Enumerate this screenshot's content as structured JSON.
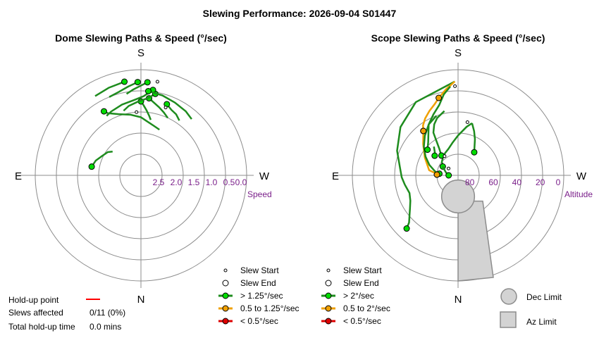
{
  "title": "Slewing Performance: 2026-09-04 S01447",
  "footer": {
    "holdup_label": "Hold-up point",
    "slews_label": "Slews affected",
    "slews_value": "0/11 (0%)",
    "total_label": "Total hold-up time",
    "total_value": "0.0 mins",
    "holdup_color": "#ff0000"
  },
  "colors": {
    "fast": "#00dd00",
    "fast_line": "#1e8c1e",
    "medium": "#f0a000",
    "slow": "#dd0000",
    "ring": "#8c8c8c",
    "ring_label": "#7a1f8a",
    "limit_fill": "#d3d3d3",
    "limit_edge": "#8c8c8c"
  },
  "chart_data": [
    {
      "type": "polar",
      "title": "Dome Slewing Paths & Speed (°/sec)",
      "directions": {
        "top": "S",
        "bottom": "N",
        "left": "E",
        "right": "W"
      },
      "radial_label": "Speed",
      "radial_ticks": [
        "2.5",
        "2.0",
        "1.5",
        "1.0",
        "0.5",
        "0.0"
      ],
      "radial_values": [
        2.5,
        2.0,
        1.5,
        1.0,
        0.5,
        0.0
      ],
      "radial_range": [
        3.0,
        0.0
      ],
      "legend": {
        "start": "Slew Start",
        "end": "Slew End",
        "fast": "> 1.25°/sec",
        "medium": "0.5 to 1.25°/sec",
        "slow": "< 0.5°/sec"
      },
      "paths": [
        {
          "color": "fast",
          "points": [
            [
              202,
              1.6
            ],
            [
              195,
              1.55
            ],
            [
              186,
              1.45
            ],
            [
              180,
              1.35
            ],
            [
              170,
              1.25
            ],
            [
              160,
              1.15
            ],
            [
              152,
              1.0
            ],
            [
              150,
              0.9
            ]
          ]
        },
        {
          "color": "fast",
          "points": [
            [
              190,
              1.4
            ],
            [
              188,
              1.3
            ],
            [
              185,
              1.15
            ],
            [
              182,
              1.0
            ],
            [
              180,
              0.9
            ]
          ]
        },
        {
          "color": "fast",
          "points": [
            [
              205,
              1.2
            ],
            [
              200,
              1.1
            ],
            [
              195,
              1.0
            ],
            [
              190,
              0.9
            ],
            [
              186,
              0.8
            ]
          ]
        },
        {
          "color": "fast",
          "points": [
            [
              215,
              1.1
            ],
            [
              210,
              1.0
            ],
            [
              205,
              0.95
            ],
            [
              200,
              0.85
            ]
          ]
        },
        {
          "color": "fast",
          "points": [
            [
              165,
              1.1
            ],
            [
              170,
              1.0
            ],
            [
              178,
              0.9
            ],
            [
              185,
              0.8
            ],
            [
              190,
              0.65
            ]
          ]
        },
        {
          "color": "fast",
          "points": [
            [
              150,
              1.05
            ],
            [
              155,
              1.0
            ],
            [
              165,
              0.92
            ],
            [
              175,
              0.85
            ],
            [
              182,
              0.75
            ],
            [
              188,
              0.55
            ]
          ]
        },
        {
          "color": "fast",
          "points": [
            [
              222,
              0.85
            ],
            [
              215,
              0.78
            ],
            [
              205,
              0.72
            ],
            [
              195,
              0.65
            ],
            [
              185,
              0.6
            ]
          ]
        },
        {
          "color": "fast",
          "points": [
            [
              170,
              0.65
            ],
            [
              175,
              0.55
            ],
            [
              180,
              0.45
            ],
            [
              184,
              0.35
            ]
          ]
        },
        {
          "color": "fast",
          "points": [
            [
              158,
              0.6
            ],
            [
              165,
              0.55
            ],
            [
              172,
              0.45
            ],
            [
              178,
              0.35
            ]
          ]
        },
        {
          "color": "fast",
          "points": [
            [
              130,
              1.95
            ],
            [
              125,
              1.85
            ],
            [
              115,
              1.75
            ],
            [
              108,
              1.65
            ],
            [
              100,
              1.58
            ]
          ]
        },
        {
          "color": "fast",
          "points": [
            [
              150,
              0.4
            ],
            [
              160,
              0.35
            ],
            [
              170,
              0.3
            ]
          ]
        }
      ],
      "start_markers": [
        [
          200,
          0.95
        ],
        [
          176,
          1.2
        ],
        [
          190,
          0.3
        ]
      ],
      "end_markers": [
        [
          202,
          1.6
        ],
        [
          190,
          1.4
        ],
        [
          130,
          1.95
        ],
        [
          210,
          1.1
        ],
        [
          160,
          1.15
        ],
        [
          188,
          0.55
        ],
        [
          150,
          0.6
        ],
        [
          170,
          0.45
        ],
        [
          215,
          0.8
        ],
        [
          155,
          0.4
        ]
      ]
    },
    {
      "type": "polar",
      "title": "Scope Slewing Paths & Speed (°/sec)",
      "directions": {
        "top": "S",
        "bottom": "N",
        "left": "E",
        "right": "W"
      },
      "radial_label": "Altitude",
      "radial_ticks": [
        "80",
        "60",
        "40",
        "20",
        "0"
      ],
      "radial_values": [
        80,
        60,
        40,
        20,
        0
      ],
      "radial_range": [
        90,
        0
      ],
      "legend": {
        "start": "Slew Start",
        "end": "Slew End",
        "fast": "> 2°/sec",
        "medium": "0.5 to 2°/sec",
        "slow": "< 0.5°/sec",
        "dec_limit": "Dec Limit",
        "az_limit": "Az Limit"
      },
      "paths": [
        {
          "color": "fast",
          "points": [
            [
              178,
              10
            ],
            [
              150,
              18
            ],
            [
              130,
              26
            ],
            [
              112,
              34
            ],
            [
              98,
              40
            ],
            [
              88,
              42
            ],
            [
              80,
              44
            ],
            [
              70,
              46
            ],
            [
              62,
              44
            ],
            [
              55,
              40
            ],
            [
              50,
              36
            ],
            [
              46,
              32
            ],
            [
              44,
              27
            ]
          ]
        },
        {
          "color": "medium",
          "points": [
            [
              178,
              10
            ],
            [
              172,
              16
            ],
            [
              166,
              22
            ],
            [
              162,
              26
            ],
            [
              156,
              30
            ],
            [
              150,
              34
            ],
            [
              145,
              38
            ],
            [
              142,
              42
            ]
          ]
        },
        {
          "color": "medium",
          "points": [
            [
              142,
              42
            ],
            [
              132,
              50
            ],
            [
              118,
              58
            ],
            [
              100,
              65
            ],
            [
              96,
              70
            ],
            [
              92,
              72
            ]
          ]
        },
        {
          "color": "fast",
          "points": [
            [
              160,
              36
            ],
            [
              150,
              40
            ],
            [
              140,
              46
            ],
            [
              130,
              52
            ],
            [
              120,
              58
            ],
            [
              110,
              64
            ],
            [
              100,
              70
            ],
            [
              95,
              74
            ]
          ]
        },
        {
          "color": "fast",
          "points": [
            [
              175,
              14
            ],
            [
              170,
              20
            ],
            [
              165,
              28
            ],
            [
              158,
              34
            ],
            [
              150,
              40
            ],
            [
              145,
              46
            ],
            [
              138,
              52
            ],
            [
              130,
              56
            ]
          ]
        },
        {
          "color": "fast",
          "points": [
            [
              195,
              44
            ],
            [
              200,
              50
            ],
            [
              205,
              56
            ],
            [
              210,
              62
            ],
            [
              215,
              66
            ]
          ]
        },
        {
          "color": "fast",
          "points": [
            [
              195,
              44
            ],
            [
              190,
              48
            ],
            [
              180,
              56
            ],
            [
              170,
              62
            ],
            [
              160,
              66
            ],
            [
              150,
              68
            ],
            [
              140,
              70
            ],
            [
              130,
              72
            ],
            [
              120,
              75
            ]
          ]
        },
        {
          "color": "fast",
          "points": [
            [
              120,
              75
            ],
            [
              110,
              78
            ],
            [
              100,
              80
            ],
            [
              90,
              82
            ]
          ]
        },
        {
          "color": "fast",
          "points": [
            [
              168,
              34
            ],
            [
              160,
              38
            ],
            [
              155,
              42
            ],
            [
              150,
              48
            ],
            [
              148,
              55
            ],
            [
              145,
              62
            ],
            [
              140,
              68
            ]
          ]
        },
        {
          "color": "fast",
          "points": [
            [
              140,
              58
            ],
            [
              135,
              62
            ],
            [
              130,
              64
            ]
          ]
        }
      ],
      "start_markers": [
        [
          190,
          44
        ],
        [
          178,
          14
        ],
        [
          92,
          72
        ],
        [
          126,
          80
        ],
        [
          145,
          70
        ]
      ],
      "end_markers": [
        [
          178,
          10
        ],
        [
          162,
          24
        ],
        [
          44,
          27
        ],
        [
          142,
          58
        ],
        [
          150,
          64
        ],
        [
          195,
          44
        ],
        [
          95,
          74
        ],
        [
          140,
          68
        ],
        [
          120,
          75
        ]
      ],
      "medium_end_markers": [
        [
          166,
          22
        ],
        [
          142,
          42
        ],
        [
          92,
          72
        ]
      ],
      "dec_limit": {
        "center_az": 0,
        "center_alt": 72,
        "radius_deg": 14
      },
      "az_limit": {
        "az_from": -15,
        "az_to": 15,
        "alt_from": 68,
        "alt_to": 0
      }
    }
  ]
}
